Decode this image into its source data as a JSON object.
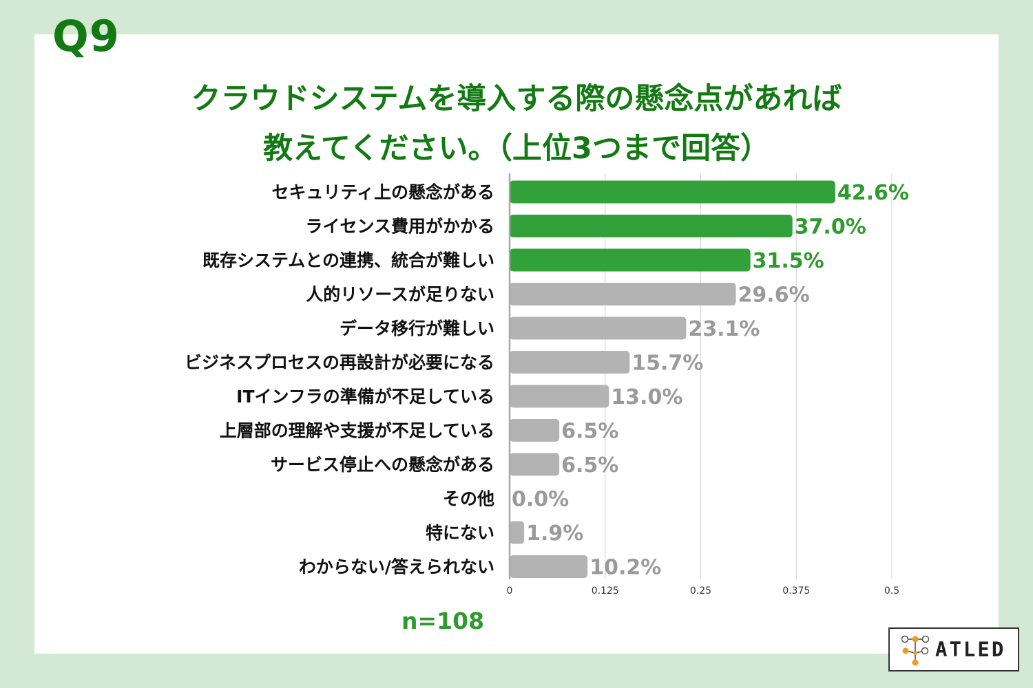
{
  "question": "Q9",
  "title": {
    "line1": "クラウドシステムを導入する際の懸念点があれば",
    "line2": "教えてください。（上位3つまで回答）"
  },
  "sample": "n=108",
  "logo": {
    "text": "ATLED",
    "mark": "node-graph-icon"
  },
  "colors": {
    "page_bg": "#d3e9d3",
    "title": "#137a13",
    "highlight_bar": "#33a13a",
    "highlight_text": "#2f9a2f",
    "other_bar": "#b3b3b3",
    "other_text": "#9a9a9a"
  },
  "chart_data": {
    "type": "bar",
    "orientation": "horizontal",
    "categories": [
      "セキュリティ上の懸念がある",
      "ライセンス費用がかかる",
      "既存システムとの連携、統合が難しい",
      "人的リソースが足りない",
      "データ移行が難しい",
      "ビジネスプロセスの再設計が必要になる",
      "ITインフラの準備が不足している",
      "上層部の理解や支援が不足している",
      "サービス停止への懸念がある",
      "その他",
      "特にない",
      "わからない/答えられない"
    ],
    "values": [
      0.426,
      0.37,
      0.315,
      0.296,
      0.231,
      0.157,
      0.13,
      0.065,
      0.065,
      0.0,
      0.019,
      0.102
    ],
    "value_labels": [
      "42.6%",
      "37.0%",
      "31.5%",
      "29.6%",
      "23.1%",
      "15.7%",
      "13.0%",
      "6.5%",
      "6.5%",
      "0.0%",
      "1.9%",
      "10.2%"
    ],
    "highlighted_count": 3,
    "x_ticks": [
      "0",
      "0.125",
      "0.25",
      "0.375",
      "0.5"
    ],
    "xlim": [
      0,
      0.5
    ],
    "grid": true
  }
}
